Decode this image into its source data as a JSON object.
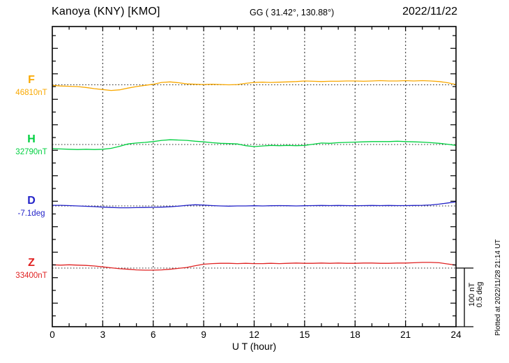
{
  "header": {
    "station": "Kanoya (KNY)  [KMO]",
    "coords": "GG ( 31.42°, 130.88°)",
    "date": "2022/11/22"
  },
  "footer": {
    "plotted_note": "Plotted at 2022/11/28 21:14 UT"
  },
  "scale_bar": {
    "line1": "100 nT",
    "line2": "0.5 deg"
  },
  "chart_data": {
    "type": "line",
    "title": "Kanoya (KNY)  [KMO]",
    "xlabel": "U T (hour)",
    "x_range": [
      0,
      24
    ],
    "x_ticks": [
      0,
      3,
      6,
      9,
      12,
      15,
      18,
      21,
      24
    ],
    "x_minor_tick_step_hours": 1,
    "grid": "dotted vertical lines every 3 h; dotted horizontal reference baseline per component",
    "legend_position": "left margin, one colored letter + reference value per trace",
    "scale_note": "vertical scale: 100 nT (F,H,Z) and 0.5 deg (D) per scale-bar length",
    "x": [
      0,
      0.5,
      1,
      1.5,
      2,
      2.5,
      3,
      3.5,
      4,
      4.5,
      5,
      5.5,
      6,
      6.5,
      7,
      7.5,
      8,
      8.5,
      9,
      9.5,
      10,
      10.5,
      11,
      11.5,
      12,
      12.5,
      13,
      13.5,
      14,
      14.5,
      15,
      15.5,
      16,
      16.5,
      17,
      17.5,
      18,
      18.5,
      19,
      19.5,
      20,
      20.5,
      21,
      21.5,
      22,
      22.5,
      23,
      23.5,
      24
    ],
    "series": [
      {
        "name": "F",
        "unit": "nT",
        "ref_label": "46810nT",
        "ref_value": 46810,
        "color": "#f9a800",
        "values_are": "deviation from reference (nT)",
        "values": [
          -1,
          -2,
          -2.5,
          -3,
          -4.5,
          -6.5,
          -8,
          -9.5,
          -8.5,
          -5.5,
          -3,
          -1,
          1,
          4,
          5,
          3.5,
          1.5,
          1,
          0.5,
          1,
          0.5,
          0,
          0.5,
          2.5,
          4,
          4.5,
          4,
          4.5,
          5,
          5.5,
          6.5,
          6,
          5.5,
          6,
          6,
          6.5,
          6.5,
          6,
          6.5,
          7,
          6.5,
          6.5,
          7,
          6.5,
          7,
          6.5,
          5.5,
          3.5,
          0.5
        ]
      },
      {
        "name": "H",
        "unit": "nT",
        "ref_label": "32790nT",
        "ref_value": 32790,
        "color": "#00d040",
        "values_are": "deviation from reference (nT)",
        "values": [
          -7,
          -7.5,
          -8,
          -8.5,
          -8,
          -8.5,
          -8,
          -6.5,
          -3,
          1,
          2.5,
          3.5,
          5,
          7,
          8,
          7.5,
          7,
          5.5,
          4.5,
          3,
          2,
          1.5,
          1,
          -2,
          -3.5,
          -2.5,
          -1.5,
          -2,
          -1.5,
          -2,
          -1.5,
          0.5,
          2.5,
          2,
          3,
          3.5,
          4,
          4.5,
          5,
          5,
          5,
          5.5,
          5,
          4.5,
          4,
          3,
          2,
          0.5,
          -1.5
        ]
      },
      {
        "name": "D",
        "unit": "deg",
        "ref_label": "-7.1deg",
        "ref_value": -7.1,
        "color": "#2222c8",
        "values_are": "deviation from reference (deg)",
        "values": [
          0.005,
          0.005,
          0.003,
          0,
          -0.003,
          -0.006,
          -0.01,
          -0.013,
          -0.015,
          -0.015,
          -0.014,
          -0.013,
          -0.012,
          -0.01,
          -0.007,
          -0.002,
          0.005,
          0.01,
          0.007,
          0.003,
          0,
          -0.002,
          0,
          0,
          0.002,
          0,
          0.002,
          0.003,
          0.002,
          0,
          0.002,
          0.003,
          0.004,
          0.003,
          0.004,
          0.003,
          0.002,
          0.003,
          0.004,
          0.003,
          0.004,
          0.003,
          0.003,
          0.004,
          0.005,
          0.008,
          0.015,
          0.025,
          0.035
        ]
      },
      {
        "name": "Z",
        "unit": "nT",
        "ref_label": "33400nT",
        "ref_value": 33400,
        "color": "#e02222",
        "values_are": "deviation from reference (nT)",
        "values": [
          5.5,
          5,
          5.5,
          5,
          4.5,
          3.5,
          2,
          0.5,
          -1,
          -2,
          -3,
          -3.5,
          -3.5,
          -3,
          -2,
          -0.5,
          1,
          4,
          6.5,
          7.5,
          8,
          8,
          7.5,
          8,
          7.5,
          7.5,
          8,
          7.5,
          8,
          8.5,
          8,
          8,
          8.5,
          8,
          8.5,
          8,
          8,
          8.5,
          8.5,
          8,
          8,
          8.5,
          8.5,
          9,
          9.5,
          9.5,
          9,
          7,
          5
        ]
      }
    ]
  }
}
